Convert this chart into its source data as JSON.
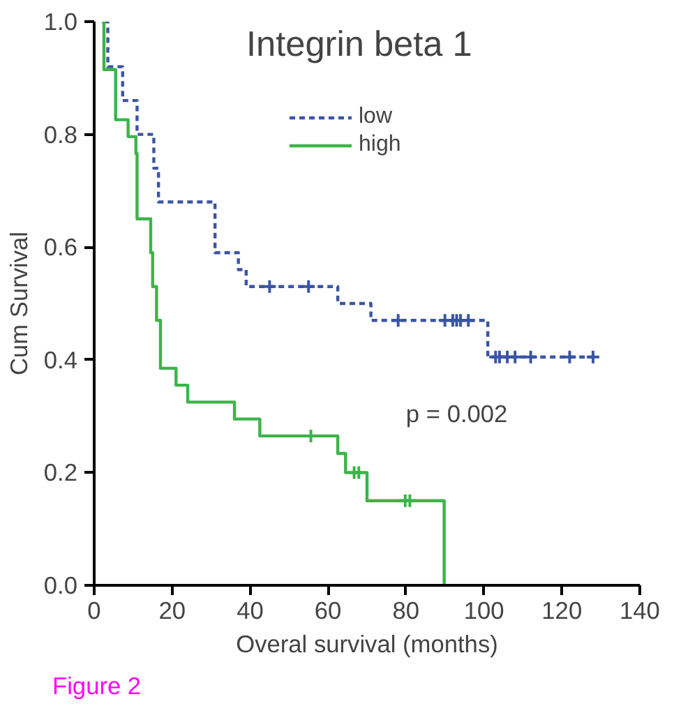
{
  "chart_data": {
    "type": "step",
    "title": "Integrin beta 1",
    "xlabel": "Overal survival (months)",
    "ylabel": "Cum Survival",
    "annotations": [
      "p = 0.002",
      "Figure 2"
    ],
    "xlim": [
      0,
      140
    ],
    "xticks": [
      0,
      20,
      40,
      60,
      80,
      100,
      120,
      140
    ],
    "ylim": [
      0,
      1
    ],
    "yticks": [
      {
        "value": 0,
        "label": "0.0"
      },
      {
        "value": 0.2,
        "label": "0.2"
      },
      {
        "value": 0.4,
        "label": "0.4"
      },
      {
        "value": 0.6,
        "label": "0.6"
      },
      {
        "value": 0.8,
        "label": "0.8"
      },
      {
        "value": 1,
        "label": "1.0"
      }
    ],
    "grid": false,
    "legend": "top",
    "series": [
      {
        "name": "low",
        "color": "#3a55a4",
        "line_style": "dashed",
        "x": [
          2.5,
          3.5,
          7.3,
          11,
          15.3,
          16.5,
          31,
          37,
          39,
          62.5,
          71,
          101,
          128
        ],
        "values": [
          1.0,
          0.92,
          0.86,
          0.8,
          0.74,
          0.68,
          0.59,
          0.56,
          0.53,
          0.5,
          0.47,
          0.405,
          0.405
        ]
      },
      {
        "name": "high",
        "color": "#3cb44a",
        "line_style": "solid",
        "x": [
          2,
          2.5,
          5.5,
          8.7,
          10.7,
          11,
          14.5,
          15,
          16,
          17,
          21,
          24,
          36,
          42.5,
          62.5,
          64.5,
          70,
          89.8
        ],
        "values": [
          1.0,
          0.915,
          0.826,
          0.796,
          0.766,
          0.65,
          0.59,
          0.53,
          0.47,
          0.385,
          0.355,
          0.325,
          0.295,
          0.265,
          0.234,
          0.2,
          0.15,
          0.0
        ]
      },
      {
        "type": "scatter",
        "marker": "cross",
        "color": "#3a55a4",
        "x": [
          45,
          55,
          78,
          90,
          92,
          93,
          94,
          96,
          103,
          104,
          106,
          108,
          112,
          122,
          128
        ],
        "values": [
          0.53,
          0.53,
          0.47,
          0.47,
          0.47,
          0.47,
          0.47,
          0.47,
          0.405,
          0.405,
          0.405,
          0.405,
          0.405,
          0.405,
          0.405
        ]
      },
      {
        "type": "scatter",
        "marker": "cross",
        "color": "#3cb44a",
        "x": [
          55.6,
          66.7,
          67.9,
          79.8,
          81
        ],
        "values": [
          0.265,
          0.2,
          0.2,
          0.15,
          0.15
        ]
      }
    ]
  }
}
